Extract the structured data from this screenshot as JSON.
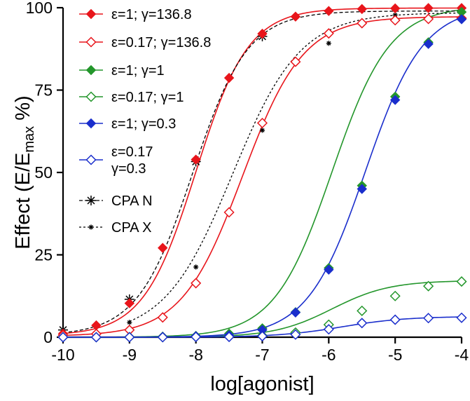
{
  "chart_data": {
    "type": "line",
    "xlabel": "log[agonist]",
    "ylabel_main": "Effect (E/E",
    "ylabel_sub": "max",
    "ylabel_end": " %)",
    "xlim": [
      -10,
      -4
    ],
    "ylim": [
      0,
      100
    ],
    "xticks": [
      -10,
      -9,
      -8,
      -7,
      -6,
      -5,
      -4
    ],
    "yticks": [
      0,
      25,
      50,
      75,
      100
    ],
    "grid": false,
    "legend_position": "top-left",
    "series": [
      {
        "name": "ε=1; γ=136.8",
        "legend": [
          "ε=1; γ=136.8"
        ],
        "color": "#e8151b",
        "marker": "diamond-filled",
        "line": "solid",
        "fit": {
          "bottom": 0.5,
          "top": 99.9,
          "logEC50": -8.0,
          "hill": 1.1
        },
        "x": [
          -10,
          -9.5,
          -9,
          -8.5,
          -8,
          -7.5,
          -7,
          -6.5,
          -6,
          -5.5,
          -5,
          -4.5,
          -4
        ],
        "y": [
          1.1,
          3.6,
          10.3,
          27.1,
          53.9,
          78.7,
          92.1,
          97.3,
          99.0,
          99.6,
          99.8,
          99.9,
          99.9
        ]
      },
      {
        "name": "ε=0.17; γ=136.8",
        "legend": [
          "ε=0.17; γ=136.8"
        ],
        "color": "#e8151b",
        "marker": "diamond-open",
        "line": "solid",
        "fit": {
          "bottom": 0.3,
          "top": 97.3,
          "logEC50": -7.3,
          "hill": 0.95
        },
        "x": [
          -10,
          -9.5,
          -9,
          -8.5,
          -8,
          -7.5,
          -7,
          -6.5,
          -6,
          -5.5,
          -5,
          -4.5,
          -4
        ],
        "y": [
          0.6,
          1.0,
          2.2,
          6.0,
          16.4,
          37.9,
          65.0,
          83.6,
          92.2,
          95.3,
          96.2,
          96.6,
          96.8
        ]
      },
      {
        "name": "ε=1; γ=1",
        "legend": [
          "ε=1; γ=1"
        ],
        "color": "#23962b",
        "marker": "diamond-filled",
        "line": "solid",
        "fit": {
          "bottom": 0,
          "top": 100.5,
          "logEC50": -5.95,
          "hill": 1.0
        },
        "x": [
          -10,
          -9.5,
          -9,
          -8.5,
          -8,
          -7.5,
          -7,
          -6.5,
          -6,
          -5.5,
          -5,
          -4.5,
          -4
        ],
        "y": [
          0.0,
          0.0,
          0.1,
          0.2,
          0.4,
          1.1,
          2.7,
          7.6,
          21.0,
          46.0,
          73.0,
          89.5,
          98.7
        ]
      },
      {
        "name": "ε=0.17; γ=1",
        "legend": [
          "ε=0.17; γ=1"
        ],
        "color": "#23962b",
        "marker": "diamond-open",
        "line": "solid",
        "fit": {
          "bottom": 0,
          "top": 17.2,
          "logEC50": -5.95,
          "hill": 1.0
        },
        "x": [
          -10,
          -9.5,
          -9,
          -8.5,
          -8,
          -7.5,
          -7,
          -6.5,
          -6,
          -5.5,
          -5,
          -4.5,
          -4
        ],
        "y": [
          0.0,
          0.0,
          0.0,
          0.0,
          0.1,
          0.2,
          0.5,
          1.4,
          3.8,
          8.0,
          12.5,
          15.5,
          16.9
        ]
      },
      {
        "name": "ε=1; γ=0.3",
        "legend": [
          "ε=1; γ=0.3"
        ],
        "color": "#1a2ecc",
        "marker": "diamond-filled",
        "line": "solid",
        "fit": {
          "bottom": 0,
          "top": 100.5,
          "logEC50": -5.45,
          "hill": 1.0
        },
        "x": [
          -10,
          -9.5,
          -9,
          -8.5,
          -8,
          -7.5,
          -7,
          -6.5,
          -6,
          -5.5,
          -5,
          -4.5,
          -4
        ],
        "y": [
          0.0,
          0.0,
          0.0,
          0.1,
          0.3,
          0.6,
          2.2,
          7.5,
          20.5,
          45.0,
          72.0,
          89.0,
          96.5
        ]
      },
      {
        "name": "ε=0.17 γ=0.3",
        "legend": [
          "ε=0.17",
          "γ=0.3"
        ],
        "color": "#1a2ecc",
        "marker": "diamond-open",
        "line": "solid",
        "fit": {
          "bottom": 0,
          "top": 6.3,
          "logEC50": -5.8,
          "hill": 0.9
        },
        "x": [
          -10,
          -9.5,
          -9,
          -8.5,
          -8,
          -7.5,
          -7,
          -6.5,
          -6,
          -5.5,
          -5,
          -4.5,
          -4
        ],
        "y": [
          0.0,
          0.0,
          0.0,
          0.0,
          0.1,
          0.1,
          0.3,
          0.8,
          2.4,
          4.3,
          5.3,
          5.8,
          5.9
        ]
      },
      {
        "name": "CPA N",
        "legend": [
          "CPA N"
        ],
        "color": "#000000",
        "marker": "asterisk",
        "line": "dashed",
        "fit": {
          "bottom": 0.5,
          "top": 99.0,
          "logEC50": -8.05,
          "hill": 1.05
        },
        "x": [
          -10,
          -9,
          -8,
          -7
        ],
        "y": [
          2.2,
          11.5,
          53.3,
          91.3
        ]
      },
      {
        "name": "CPA X",
        "legend": [
          "CPA X"
        ],
        "color": "#000000",
        "marker": "dot",
        "line": "dotted",
        "fit": {
          "bottom": 0.3,
          "top": 98.5,
          "logEC50": -7.45,
          "hill": 0.85
        },
        "x": [
          -9,
          -8,
          -7,
          -6,
          -5
        ],
        "y": [
          4.5,
          21.3,
          62.8,
          89.2,
          97.8
        ]
      }
    ]
  }
}
